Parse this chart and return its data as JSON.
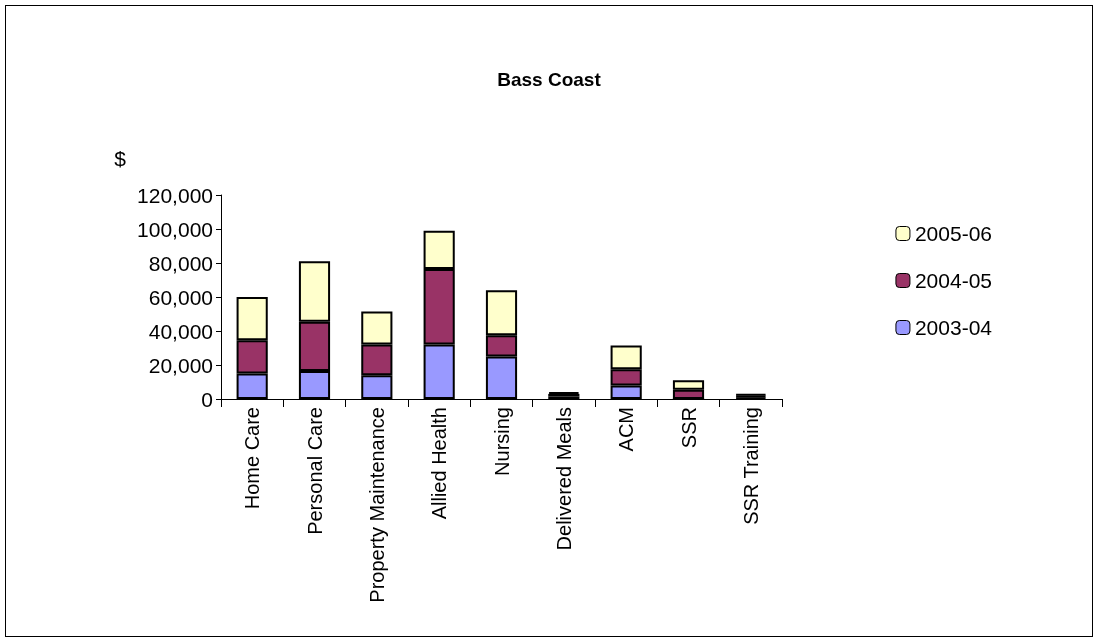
{
  "chart_data": {
    "type": "bar",
    "title": "Bass Coast",
    "ylabel": "$",
    "stacked": true,
    "legend": "right",
    "grid": false,
    "categories": [
      "Home Care",
      "Personal Care",
      "Property Maintenance",
      "Allied Health",
      "Nursing",
      "Delivered Meals",
      "ACM",
      "SSR",
      "SSR Training"
    ],
    "series": [
      {
        "name": "2003-04",
        "color": "#9999ff",
        "colors": [
          "#9999ff",
          "#9999ff",
          "#9999ff",
          "#9999ff",
          "#9999ff",
          "#000000",
          "#9999ff",
          "#9999ff",
          "#000000"
        ],
        "values": [
          15000,
          16500,
          14000,
          32000,
          25000,
          1500,
          8000,
          0,
          1000
        ]
      },
      {
        "name": "2004-05",
        "color": "#993366",
        "colors": [
          "#993366",
          "#993366",
          "#993366",
          "#993366",
          "#993366",
          "#000000",
          "#993366",
          "#993366",
          "#000000"
        ],
        "values": [
          19500,
          29000,
          18000,
          44500,
          12500,
          1500,
          9500,
          5500,
          1000
        ]
      },
      {
        "name": "2005-06",
        "color": "#ffffcc",
        "colors": [
          "#ffffcc",
          "#ffffcc",
          "#ffffcc",
          "#ffffcc",
          "#ffffcc",
          "#000000",
          "#ffffcc",
          "#ffffcc",
          "#000000"
        ],
        "values": [
          25500,
          35500,
          19500,
          22500,
          26500,
          1000,
          14000,
          5500,
          1000
        ]
      }
    ],
    "ylim": [
      0,
      120000
    ],
    "yticks": [
      0,
      {
        "value": 20000,
        "label": "20,000"
      },
      {
        "value": 40000,
        "label": "40,000"
      },
      {
        "value": 60000,
        "label": "60,000"
      },
      {
        "value": 80000,
        "label": "80,000"
      },
      {
        "value": 100000,
        "label": "100,000"
      },
      {
        "value": 120000,
        "label": "120,000"
      }
    ]
  }
}
